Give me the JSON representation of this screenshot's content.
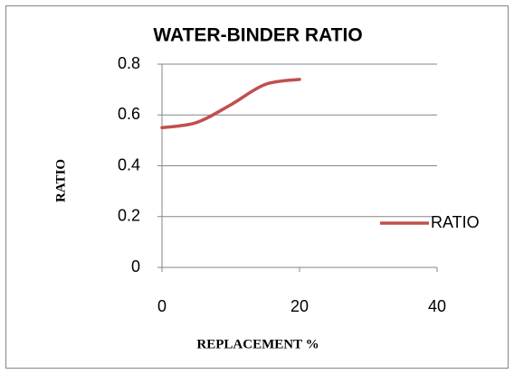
{
  "chart_data": {
    "type": "line",
    "title": "WATER-BINDER RATIO",
    "x_label": "REPLACEMENT %",
    "y_label": "RATIO",
    "x": [
      0,
      5,
      10,
      15,
      20
    ],
    "series": [
      {
        "name": "RATIO",
        "color": "#c0504d",
        "values": [
          0.55,
          0.57,
          0.64,
          0.72,
          0.74
        ]
      }
    ],
    "xlim": [
      0,
      40
    ],
    "xticks": [
      0,
      20,
      40
    ],
    "ylim": [
      0,
      0.8
    ],
    "yticks": [
      0,
      0.2,
      0.4,
      0.6,
      0.8
    ],
    "grid": true,
    "legend": "right"
  }
}
